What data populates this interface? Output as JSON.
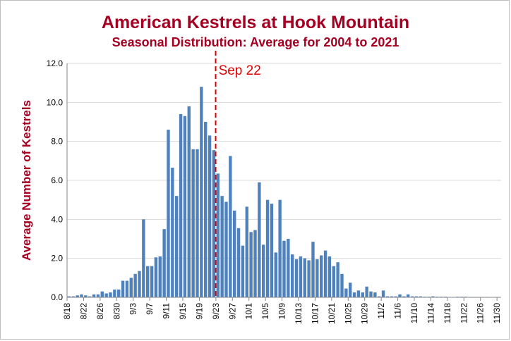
{
  "chart_data": {
    "type": "bar",
    "title": "American Kestrels at Hook Mountain",
    "subtitle": "Seasonal Distribution:  Average for 2004 to 2021",
    "xlabel": "",
    "ylabel": "Average Number of Kestrels",
    "ylim": [
      0,
      12
    ],
    "yticks": [
      "0.0",
      "2.0",
      "4.0",
      "6.0",
      "8.0",
      "10.0",
      "12.0"
    ],
    "grid": "horizontal",
    "bar_color": "#4f81bd",
    "x_tick_labels": [
      "8/18",
      "8/22",
      "8/26",
      "8/30",
      "9/3",
      "9/7",
      "9/11",
      "9/15",
      "9/19",
      "9/23",
      "9/27",
      "10/1",
      "10/5",
      "10/9",
      "10/13",
      "10/17",
      "10/21",
      "10/25",
      "10/29",
      "11/2",
      "11/6",
      "11/10",
      "11/14",
      "11/18",
      "11/22",
      "11/26",
      "11/30"
    ],
    "categories": [
      "8/18",
      "8/19",
      "8/20",
      "8/21",
      "8/22",
      "8/23",
      "8/24",
      "8/25",
      "8/26",
      "8/27",
      "8/28",
      "8/29",
      "8/30",
      "8/31",
      "9/1",
      "9/2",
      "9/3",
      "9/4",
      "9/5",
      "9/6",
      "9/7",
      "9/8",
      "9/9",
      "9/10",
      "9/11",
      "9/12",
      "9/13",
      "9/14",
      "9/15",
      "9/16",
      "9/17",
      "9/18",
      "9/19",
      "9/20",
      "9/21",
      "9/22",
      "9/23",
      "9/24",
      "9/25",
      "9/26",
      "9/27",
      "9/28",
      "9/29",
      "9/30",
      "10/1",
      "10/2",
      "10/3",
      "10/4",
      "10/5",
      "10/6",
      "10/7",
      "10/8",
      "10/9",
      "10/10",
      "10/11",
      "10/12",
      "10/13",
      "10/14",
      "10/15",
      "10/16",
      "10/17",
      "10/18",
      "10/19",
      "10/20",
      "10/21",
      "10/22",
      "10/23",
      "10/24",
      "10/25",
      "10/26",
      "10/27",
      "10/28",
      "10/29",
      "10/30",
      "10/31",
      "11/1",
      "11/2",
      "11/3",
      "11/4",
      "11/5",
      "11/6",
      "11/7",
      "11/8",
      "11/9",
      "11/10",
      "11/11",
      "11/12",
      "11/13",
      "11/14",
      "11/15",
      "11/16",
      "11/17",
      "11/18",
      "11/19",
      "11/20",
      "11/21",
      "11/22",
      "11/23",
      "11/24",
      "11/25",
      "11/26",
      "11/27",
      "11/28",
      "11/29",
      "11/30"
    ],
    "values": [
      0.05,
      0.05,
      0.1,
      0.15,
      0.1,
      0.05,
      0.15,
      0.15,
      0.3,
      0.2,
      0.25,
      0.4,
      0.4,
      0.85,
      0.85,
      1.0,
      1.2,
      1.35,
      4.0,
      1.6,
      1.6,
      2.05,
      2.1,
      3.5,
      8.6,
      6.65,
      5.2,
      9.4,
      9.3,
      9.8,
      7.6,
      7.6,
      10.8,
      9.0,
      8.3,
      7.55,
      6.35,
      5.2,
      4.9,
      7.25,
      4.45,
      3.55,
      2.65,
      4.65,
      3.35,
      3.45,
      5.9,
      2.7,
      5.0,
      4.8,
      2.3,
      5.0,
      2.9,
      3.0,
      2.2,
      1.95,
      2.1,
      2.0,
      1.9,
      2.85,
      1.95,
      2.15,
      2.4,
      2.1,
      1.6,
      1.8,
      1.2,
      0.45,
      0.75,
      0.25,
      0.35,
      0.25,
      0.55,
      0.3,
      0.25,
      0.05,
      0.35,
      0.05,
      0.05,
      0.05,
      0.15,
      0.05,
      0.15,
      0.05,
      0.05,
      0.05,
      0.03,
      0.03,
      0.05,
      0.03,
      0.03,
      0.03,
      0.02,
      0.02,
      0.03,
      0.03,
      0.03,
      0.02,
      0.02,
      0.02,
      0.02,
      0.02,
      0.01,
      0.01,
      0.0
    ],
    "annotation": {
      "label": "Sep 22",
      "category": "9/22",
      "style": "dashed",
      "color": "#e00000"
    }
  }
}
